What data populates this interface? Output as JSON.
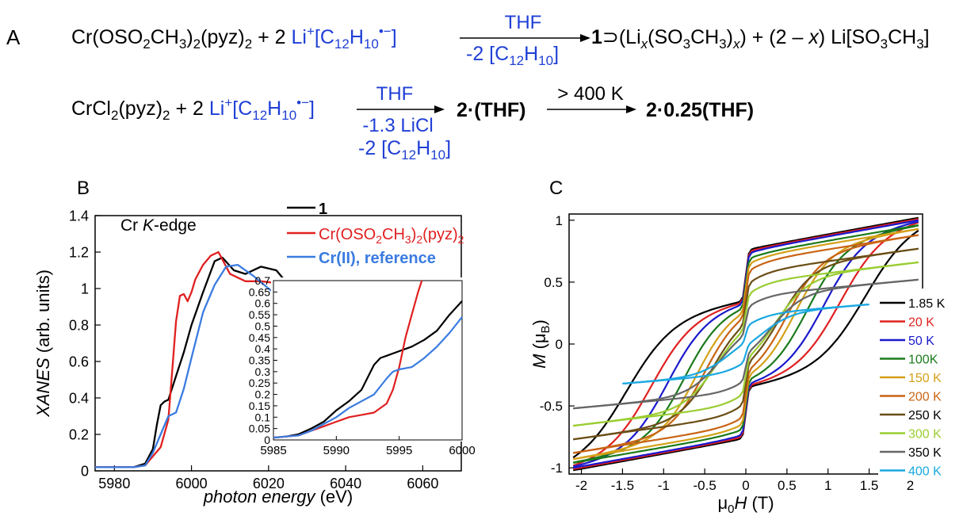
{
  "panel_labels": {
    "a": "A",
    "b": "B",
    "c": "C"
  },
  "reaction1": {
    "reactant": "Cr(OSO2CH3)2(pyz)2",
    "plus": "+",
    "coeff": "2",
    "reagent": "Li+[C12H10•−]",
    "above_arrow": "THF",
    "below_arrow": "-2 [C12H10]",
    "product_main": "1",
    "product_host": "⊃(Lix(SO3CH3)x)",
    "byproduct": "+ (2 – x) Li[SO3CH3]"
  },
  "reaction2": {
    "reactant": "CrCl2(pyz)2",
    "plus": "+",
    "coeff": "2",
    "reagent": "Li+[C12H10•−]",
    "above_arrow": "THF",
    "below_arrow_1": "-1.3 LiCl",
    "below_arrow_2": "-2 [C12H10]",
    "product_1": "2·(THF)",
    "above_arrow_2": "> 400 K",
    "product_2": "2·0.25(THF)"
  },
  "chart_data": [
    {
      "type": "line",
      "panel": "B",
      "annotation": "Cr K-edge",
      "xlabel": "photon energy (eV)",
      "ylabel": "XANES (arb. units)",
      "xlim": [
        5975,
        6070
      ],
      "ylim": [
        0,
        1.4
      ],
      "xticks": [
        5980,
        6000,
        6020,
        6040,
        6060
      ],
      "yticks": [
        0,
        0.2,
        0.4,
        0.6,
        0.8,
        1,
        1.2,
        1.4
      ],
      "legend": "top-right",
      "series": [
        {
          "name": "1",
          "color": "#000000",
          "x": [
            5975,
            5985,
            5988,
            5990,
            5991,
            5992,
            5993,
            5994,
            5996,
            5998,
            6000,
            6003,
            6006,
            6008,
            6011,
            6014,
            6018,
            6022,
            6026,
            6030,
            6034,
            6038,
            6042,
            6046,
            6050,
            6055,
            6060,
            6064
          ],
          "y": [
            0.02,
            0.02,
            0.04,
            0.12,
            0.25,
            0.36,
            0.38,
            0.39,
            0.52,
            0.65,
            0.8,
            0.98,
            1.15,
            1.17,
            1.1,
            1.08,
            1.12,
            1.1,
            1.0,
            0.88,
            0.75,
            0.67,
            0.68,
            0.77,
            0.91,
            1.0,
            1.01,
            1.01
          ]
        },
        {
          "name": "Cr(OSO2CH3)2(pyz)2",
          "color": "#e02020",
          "x": [
            5975,
            5985,
            5988,
            5990,
            5992,
            5994,
            5995,
            5996,
            5997,
            5998,
            5999,
            6000,
            6001,
            6003,
            6005,
            6007,
            6010,
            6014,
            6018,
            6022,
            6026,
            6030,
            6035,
            6040,
            6045,
            6050,
            6055,
            6060,
            6064
          ],
          "y": [
            0.02,
            0.02,
            0.03,
            0.08,
            0.13,
            0.28,
            0.55,
            0.82,
            0.96,
            0.97,
            0.93,
            0.98,
            1.05,
            1.13,
            1.18,
            1.2,
            1.08,
            1.04,
            1.04,
            1.03,
            0.98,
            0.88,
            0.78,
            0.72,
            0.78,
            0.88,
            0.98,
            1.0,
            1.01
          ]
        },
        {
          "name": "Cr(II), reference",
          "color": "#3a7be0",
          "x": [
            5975,
            5985,
            5988,
            5990,
            5992,
            5994,
            5996,
            5998,
            6000,
            6003,
            6006,
            6009,
            6012,
            6016,
            6020,
            6025,
            6030,
            6035,
            6040,
            6045,
            6050,
            6055,
            6060,
            6064
          ],
          "y": [
            0.02,
            0.02,
            0.03,
            0.1,
            0.2,
            0.3,
            0.32,
            0.45,
            0.62,
            0.87,
            1.02,
            1.12,
            1.13,
            1.07,
            1.0,
            0.92,
            0.82,
            0.72,
            0.66,
            0.67,
            0.75,
            0.86,
            0.96,
            0.99
          ]
        }
      ]
    },
    {
      "type": "line",
      "panel": "B-inset",
      "xlim": [
        5985,
        6000
      ],
      "ylim": [
        0,
        0.7
      ],
      "xticks": [
        5985,
        5990,
        5995,
        6000
      ],
      "yticks": [
        0,
        0.05,
        0.1,
        0.15,
        0.2,
        0.25,
        0.3,
        0.35,
        0.4,
        0.45,
        0.5,
        0.55,
        0.6,
        0.65,
        0.7
      ],
      "series": [
        {
          "name": "1",
          "color": "#000000",
          "x": [
            5985,
            5986,
            5987,
            5988,
            5989,
            5990,
            5991,
            5992,
            5993,
            5993.5,
            5994,
            5995,
            5996,
            5997,
            5998,
            5999,
            6000
          ],
          "y": [
            0.01,
            0.015,
            0.025,
            0.05,
            0.08,
            0.13,
            0.17,
            0.22,
            0.33,
            0.36,
            0.37,
            0.39,
            0.41,
            0.44,
            0.48,
            0.55,
            0.61
          ]
        },
        {
          "name": "Cr(OSO2CH3)2(pyz)2",
          "color": "#e02020",
          "x": [
            5985,
            5986,
            5987,
            5988,
            5989,
            5990,
            5990.5,
            5991,
            5992,
            5993,
            5994,
            5994.5,
            5995,
            5995.5,
            5996,
            5996.5,
            5996.8
          ],
          "y": [
            0.01,
            0.015,
            0.02,
            0.04,
            0.06,
            0.08,
            0.09,
            0.1,
            0.11,
            0.12,
            0.16,
            0.22,
            0.32,
            0.45,
            0.55,
            0.65,
            0.7
          ]
        },
        {
          "name": "Cr(II), reference",
          "color": "#3a7be0",
          "x": [
            5985,
            5986,
            5987,
            5988,
            5989,
            5990,
            5991,
            5992,
            5993,
            5994,
            5994.5,
            5995,
            5996,
            5997,
            5998,
            5999,
            6000
          ],
          "y": [
            0.01,
            0.015,
            0.02,
            0.04,
            0.07,
            0.1,
            0.14,
            0.17,
            0.2,
            0.27,
            0.3,
            0.31,
            0.32,
            0.36,
            0.41,
            0.47,
            0.54
          ]
        }
      ]
    },
    {
      "type": "line",
      "panel": "C",
      "xlabel": "μ0H (T)",
      "ylabel": "M (μB)",
      "xlim": [
        -2.15,
        2.15
      ],
      "ylim": [
        -1.05,
        1.05
      ],
      "xticks": [
        -2,
        -1.5,
        -1,
        -0.5,
        0,
        0.5,
        1,
        1.5,
        2
      ],
      "yticks": [
        -1,
        -0.5,
        0,
        0.5,
        1
      ],
      "legend": "right",
      "series": [
        {
          "name": "1.85 K",
          "color": "#000000",
          "hc": 1.45,
          "msat": 1.02,
          "hmax": 2.1
        },
        {
          "name": "20 K",
          "color": "#e02020",
          "hc": 1.15,
          "msat": 1.01,
          "hmax": 2.1
        },
        {
          "name": "50 K",
          "color": "#1a1acc",
          "hc": 0.95,
          "msat": 1.0,
          "hmax": 2.1
        },
        {
          "name": "100K",
          "color": "#1a7a1a",
          "hc": 0.75,
          "msat": 0.96,
          "hmax": 2.1
        },
        {
          "name": "150 K",
          "color": "#d4a017",
          "hc": 0.6,
          "msat": 0.93,
          "hmax": 2.1
        },
        {
          "name": "200 K",
          "color": "#c86414",
          "hc": 0.5,
          "msat": 0.88,
          "hmax": 2.1
        },
        {
          "name": "250 K",
          "color": "#6b4e16",
          "hc": 0.4,
          "msat": 0.77,
          "hmax": 2.1
        },
        {
          "name": "300 K",
          "color": "#9acd32",
          "hc": 0.35,
          "msat": 0.66,
          "hmax": 2.1
        },
        {
          "name": "350 K",
          "color": "#666666",
          "hc": 0.3,
          "msat": 0.52,
          "hmax": 2.1
        },
        {
          "name": "400 K",
          "color": "#1aa8e0",
          "hc": 0.18,
          "msat": 0.32,
          "hmax": 1.5
        }
      ]
    }
  ]
}
